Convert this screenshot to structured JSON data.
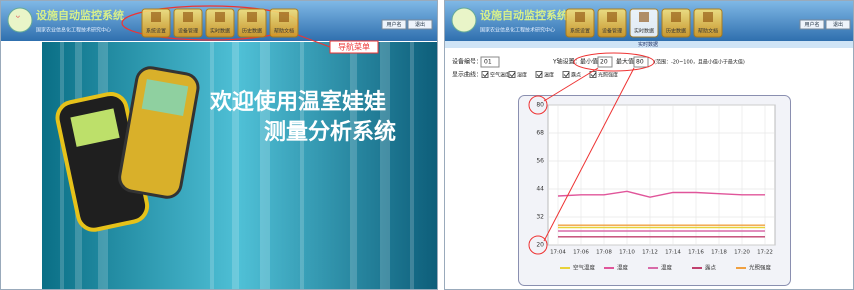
{
  "left": {
    "logo_title": "设施自动监控系统",
    "logo_subtitle": "国家农业信息化工程技术研究中心",
    "nav": [
      "系统设置",
      "设备管理",
      "实时数据",
      "历史数据",
      "帮助文档"
    ],
    "user_links": [
      "用户名",
      "退出"
    ],
    "annotation": "导航菜单",
    "banner": {
      "line1": "欢迎使用温室娃娃",
      "line2": "测量分析系统"
    }
  },
  "right": {
    "logo_title": "设施自动监控系统",
    "logo_subtitle": "国家农业信息化工程技术研究中心",
    "nav": [
      "系统设置",
      "设备管理",
      "实时数据",
      "历史数据",
      "帮助文档"
    ],
    "user_links": [
      "用户名",
      "退出"
    ],
    "sub_nav": "实时数据",
    "form": {
      "device_label": "设备编号：",
      "device_value": "01",
      "yaxis_label": "Y轴设置：",
      "min_label": "最小值",
      "min_value": "20",
      "max_label": "最大值",
      "max_value": "80",
      "range_note": "(范围：-20~100，且最小值小于最大值)",
      "curves_label": "显示曲线："
    }
  },
  "chart_data": {
    "type": "line",
    "categories": [
      "17:04",
      "17:06",
      "17:08",
      "17:10",
      "17:12",
      "17:14",
      "17:16",
      "17:18",
      "17:20",
      "17:22"
    ],
    "ylim": [
      20,
      80
    ],
    "yticks": [
      20,
      32,
      44,
      56,
      68,
      80
    ],
    "grid": true,
    "series": [
      {
        "name": "空气温度",
        "color": "#e8d23a",
        "values": [
          27.5,
          27.5,
          27.5,
          27.5,
          27.5,
          27.5,
          27.5,
          27.5,
          27.5,
          27.5
        ]
      },
      {
        "name": "湿度",
        "color": "#e0559a",
        "values": [
          41,
          41.5,
          41.5,
          43,
          40.5,
          42.5,
          42.5,
          42,
          41.5,
          41.5
        ]
      },
      {
        "name": "温度",
        "color": "#d86aa8",
        "values": [
          26,
          26,
          26,
          26,
          26,
          26,
          26,
          26,
          26,
          26
        ]
      },
      {
        "name": "露点",
        "color": "#c0406e",
        "values": [
          23.5,
          23.5,
          23.5,
          23.5,
          23.5,
          23.5,
          23.5,
          23.5,
          23.5,
          23.5
        ]
      },
      {
        "name": "光照强度",
        "color": "#f0a040",
        "values": [
          28.5,
          28.5,
          28.5,
          28.5,
          28.5,
          28.5,
          28.5,
          28.5,
          28.5,
          28.5
        ]
      }
    ]
  }
}
